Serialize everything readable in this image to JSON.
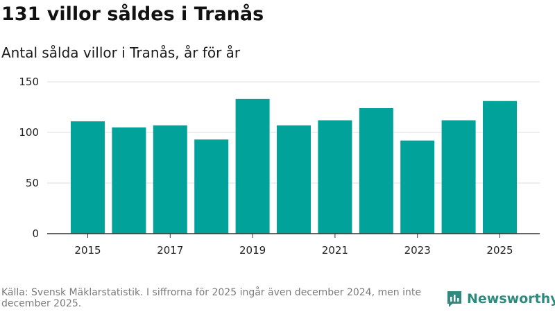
{
  "title": "131 villor såldes i Tranås",
  "subtitle": "Antal sålda villor i Tranås, år för år",
  "footer": "Källa: Svensk Mäklarstatistik. I siffrorna för 2025 ingår även december 2024, men inte december 2025.",
  "brand": {
    "name": "Newsworthy",
    "color": "#2e8a7c"
  },
  "colors": {
    "bar": "#00a29a",
    "grid": "#dddddd",
    "axis": "#333333"
  },
  "chart_data": {
    "type": "bar",
    "title": "131 villor såldes i Tranås",
    "subtitle": "Antal sålda villor i Tranås, år för år",
    "xlabel": "",
    "ylabel": "",
    "categories": [
      "2015",
      "2016",
      "2017",
      "2018",
      "2019",
      "2020",
      "2021",
      "2022",
      "2023",
      "2024",
      "2025"
    ],
    "values": [
      111,
      105,
      107,
      93,
      133,
      107,
      112,
      124,
      92,
      112,
      131
    ],
    "x_tick_labels": [
      "2015",
      "2017",
      "2019",
      "2021",
      "2023",
      "2025"
    ],
    "y_ticks": [
      0,
      50,
      100,
      150
    ],
    "ylim": [
      0,
      150
    ],
    "grid": "horizontal",
    "legend": "none"
  }
}
